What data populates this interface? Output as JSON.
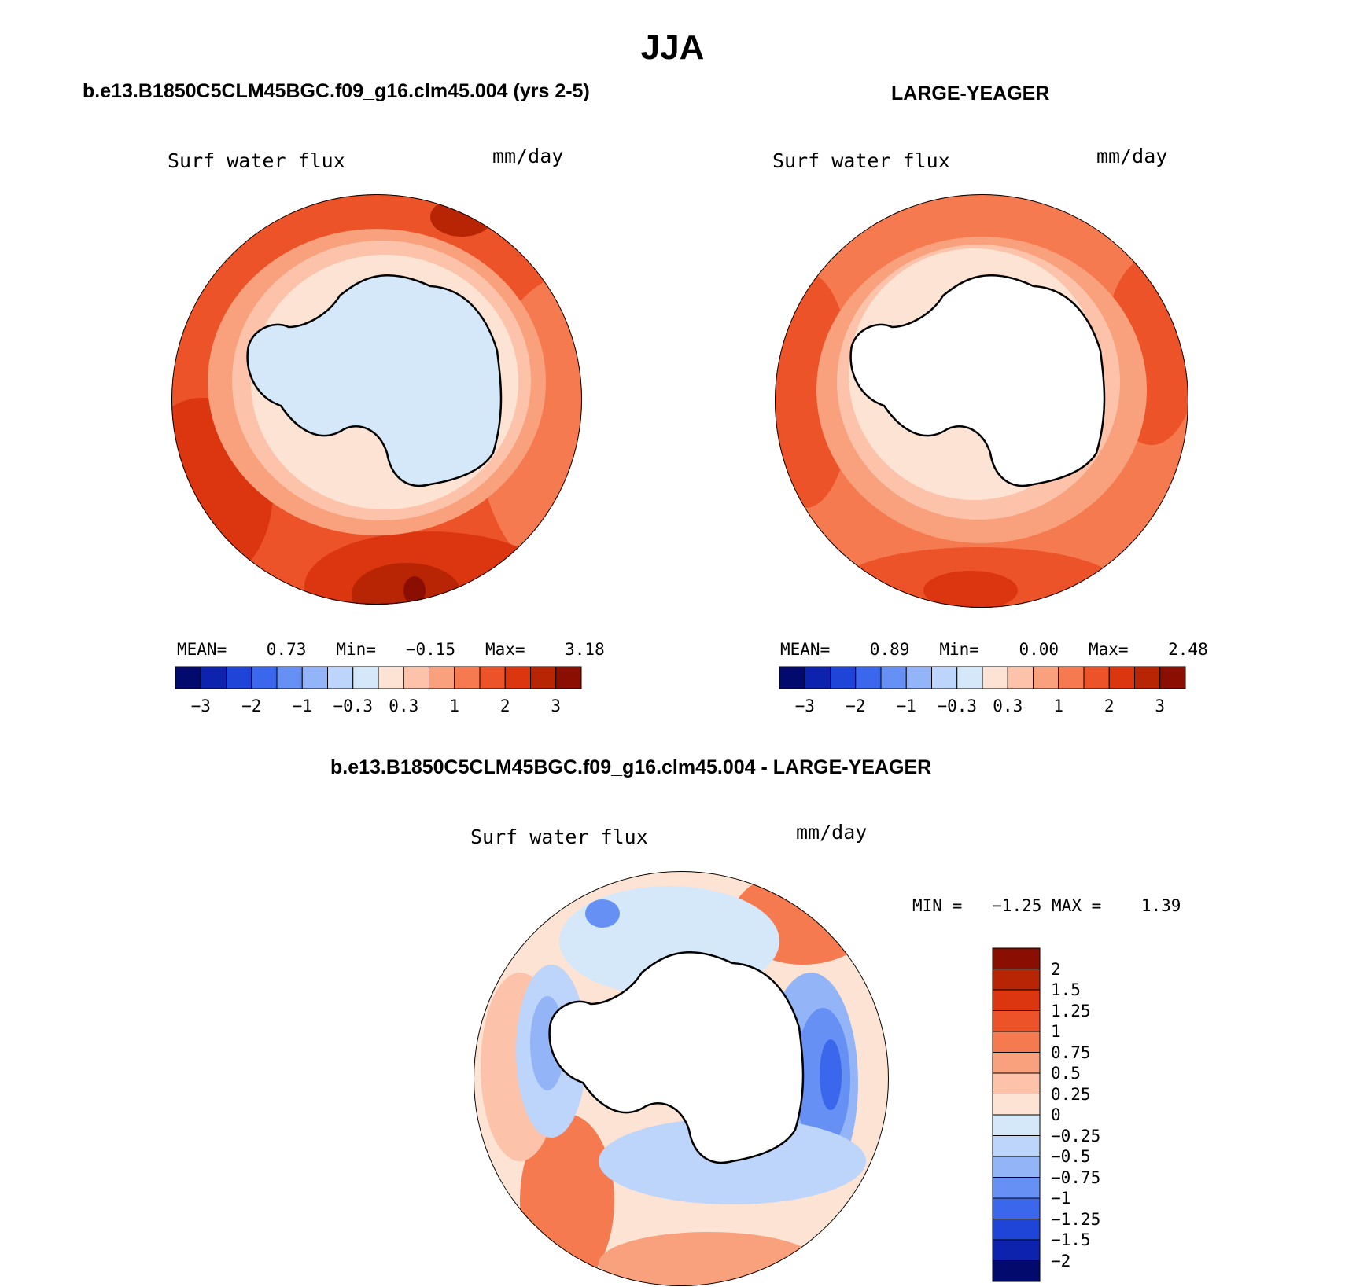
{
  "title": "JJA",
  "colors": {
    "ocean_light": "#fde3d3",
    "land_light_blue": "#d5e8fa",
    "coast": "#000000"
  },
  "panels": [
    {
      "id": "model",
      "case_title": "b.e13.B1850C5CLM45BGC.f09_g16.clm45.004 (yrs 2-5)",
      "variable": "Surf water flux",
      "units": "mm/day",
      "stats": {
        "mean_label": "MEAN=",
        "mean": "0.73",
        "min_label": "Min=",
        "min": "−0.15",
        "max_label": "Max=",
        "max": "3.18"
      },
      "colorbar": {
        "colors": [
          "#020a6e",
          "#0d23ae",
          "#1f45d8",
          "#3b67ec",
          "#6690f4",
          "#93b5f8",
          "#bdd4fb",
          "#d5e8fa",
          "#fde3d3",
          "#fcc3aa",
          "#f9a07c",
          "#f57a50",
          "#ec5328",
          "#dc3611",
          "#b82505",
          "#8a0f02"
        ],
        "tick_labels": [
          "−3",
          "−2",
          "−1",
          "−0.3",
          "0.3",
          "1",
          "2",
          "3"
        ]
      }
    },
    {
      "id": "obs",
      "case_title": "LARGE-YEAGER",
      "variable": "Surf water flux",
      "units": "mm/day",
      "stats": {
        "mean_label": "MEAN=",
        "mean": "0.89",
        "min_label": "Min=",
        "min": "0.00",
        "max_label": "Max=",
        "max": "2.48"
      },
      "colorbar": {
        "colors": [
          "#020a6e",
          "#0d23ae",
          "#1f45d8",
          "#3b67ec",
          "#6690f4",
          "#93b5f8",
          "#bdd4fb",
          "#d5e8fa",
          "#fde3d3",
          "#fcc3aa",
          "#f9a07c",
          "#f57a50",
          "#ec5328",
          "#dc3611",
          "#b82505",
          "#8a0f02"
        ],
        "tick_labels": [
          "−3",
          "−2",
          "−1",
          "−0.3",
          "0.3",
          "1",
          "2",
          "3"
        ]
      }
    },
    {
      "id": "diff",
      "case_title": "b.e13.B1850C5CLM45BGC.f09_g16.clm45.004 - LARGE-YEAGER",
      "variable": "Surf water flux",
      "units": "mm/day",
      "stats": {
        "min_label": "MIN =",
        "min": "−1.25",
        "max_label": "MAX =",
        "max": "1.39"
      },
      "colorbar": {
        "colors": [
          "#8a0f02",
          "#b82505",
          "#dc3611",
          "#ec5328",
          "#f57a50",
          "#f9a07c",
          "#fcc3aa",
          "#fde3d3",
          "#d5e8fa",
          "#bdd4fb",
          "#93b5f8",
          "#6690f4",
          "#3b67ec",
          "#1f45d8",
          "#0d23ae",
          "#020a6e"
        ],
        "tick_labels": [
          "2",
          "1.5",
          "1.25",
          "1",
          "0.75",
          "0.5",
          "0.25",
          "0",
          "−0.25",
          "−0.5",
          "−0.75",
          "−1",
          "−1.25",
          "−1.5",
          "−2"
        ]
      }
    }
  ]
}
